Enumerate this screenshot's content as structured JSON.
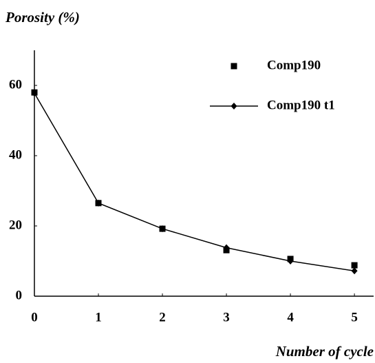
{
  "chart_data": {
    "type": "line",
    "title": "Porosity (%)",
    "x_label": "Number of cycle",
    "x": [
      0,
      1,
      2,
      3,
      4,
      5
    ],
    "series": [
      {
        "name": "Comp190",
        "color": "#000000",
        "marker": "square",
        "line": false,
        "values": [
          58,
          26.5,
          19.2,
          13.1,
          10.6,
          8.8
        ]
      },
      {
        "name": "Comp190 t1",
        "color": "#000000",
        "marker": "diamond",
        "line": true,
        "values": [
          57.8,
          26.5,
          19.2,
          13.8,
          10,
          7.2
        ]
      }
    ],
    "xlim": [
      0,
      5.3
    ],
    "xticks": [
      0,
      1,
      2,
      3,
      4,
      5
    ],
    "ylim": [
      0,
      70
    ],
    "yticks": [
      0,
      20,
      40,
      60
    ],
    "grid": false,
    "legend": "upper right"
  }
}
